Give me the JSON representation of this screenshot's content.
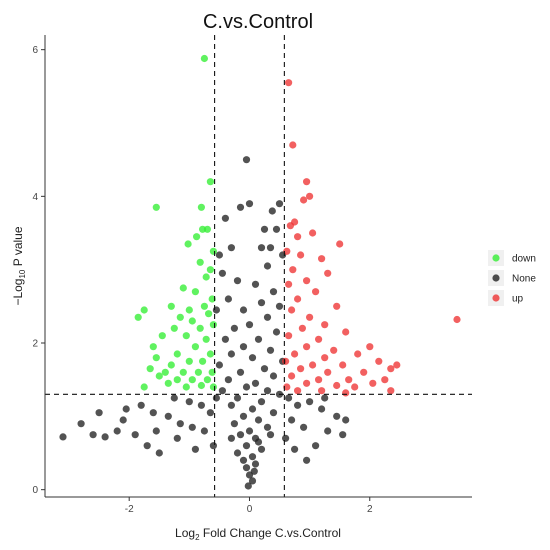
{
  "chart_data": {
    "type": "scatter",
    "title": "C.vs.Control",
    "xlabel": {
      "prefix": "Log",
      "sub": "2",
      "suffix": " Fold Change C.vs.Control"
    },
    "ylabel": {
      "prefix": "−Log",
      "sub": "10",
      "suffix": " P value"
    },
    "xlim": [
      -3.4,
      3.7
    ],
    "ylim": [
      -0.1,
      6.2
    ],
    "x_ticks": [
      -2,
      0,
      2
    ],
    "y_ticks": [
      0,
      2,
      4,
      6
    ],
    "grid": false,
    "legend_position": "right",
    "thresholds": {
      "log2fc": [
        -0.58,
        0.58
      ],
      "neg_log10_p": 1.3
    },
    "series": [
      {
        "name": "down",
        "color": "#33ee33",
        "points": [
          [
            -0.75,
            5.88
          ],
          [
            -0.65,
            4.2
          ],
          [
            -1.55,
            3.85
          ],
          [
            -0.8,
            3.85
          ],
          [
            -0.78,
            3.55
          ],
          [
            -0.7,
            3.55
          ],
          [
            -0.88,
            3.45
          ],
          [
            -1.02,
            3.35
          ],
          [
            -0.6,
            3.25
          ],
          [
            -0.82,
            3.1
          ],
          [
            -0.65,
            3.0
          ],
          [
            -0.72,
            2.9
          ],
          [
            -1.1,
            2.75
          ],
          [
            -0.9,
            2.7
          ],
          [
            -0.62,
            2.6
          ],
          [
            -1.3,
            2.5
          ],
          [
            -0.75,
            2.5
          ],
          [
            -1.75,
            2.45
          ],
          [
            -1.0,
            2.45
          ],
          [
            -1.15,
            2.35
          ],
          [
            -0.68,
            2.4
          ],
          [
            -0.95,
            2.3
          ],
          [
            -1.85,
            2.35
          ],
          [
            -0.82,
            2.2
          ],
          [
            -1.25,
            2.2
          ],
          [
            -0.6,
            2.25
          ],
          [
            -1.05,
            2.1
          ],
          [
            -1.45,
            2.1
          ],
          [
            -0.72,
            2.05
          ],
          [
            -1.6,
            1.95
          ],
          [
            -0.9,
            1.95
          ],
          [
            -1.2,
            1.85
          ],
          [
            -0.65,
            1.85
          ],
          [
            -1.55,
            1.8
          ],
          [
            -1.0,
            1.75
          ],
          [
            -0.78,
            1.75
          ],
          [
            -1.3,
            1.7
          ],
          [
            -1.65,
            1.65
          ],
          [
            -1.4,
            1.6
          ],
          [
            -1.1,
            1.6
          ],
          [
            -0.85,
            1.6
          ],
          [
            -0.62,
            1.6
          ],
          [
            -1.5,
            1.55
          ],
          [
            -1.2,
            1.5
          ],
          [
            -0.95,
            1.5
          ],
          [
            -0.7,
            1.5
          ],
          [
            -1.35,
            1.45
          ],
          [
            -0.8,
            1.42
          ],
          [
            -1.75,
            1.4
          ],
          [
            -1.05,
            1.4
          ],
          [
            -0.6,
            1.4
          ]
        ]
      },
      {
        "name": "None",
        "color": "#222222",
        "points": [
          [
            -0.05,
            4.5
          ],
          [
            0.0,
            3.9
          ],
          [
            -0.15,
            3.85
          ],
          [
            0.5,
            3.9
          ],
          [
            0.38,
            3.8
          ],
          [
            0.45,
            3.55
          ],
          [
            -0.4,
            3.7
          ],
          [
            0.25,
            3.55
          ],
          [
            0.2,
            3.3
          ],
          [
            -0.3,
            3.3
          ],
          [
            -0.5,
            3.2
          ],
          [
            0.35,
            3.3
          ],
          [
            0.55,
            3.2
          ],
          [
            0.3,
            3.05
          ],
          [
            -0.45,
            2.95
          ],
          [
            -0.2,
            2.85
          ],
          [
            0.1,
            2.8
          ],
          [
            0.4,
            2.7
          ],
          [
            -0.35,
            2.6
          ],
          [
            0.2,
            2.55
          ],
          [
            -0.1,
            2.45
          ],
          [
            0.5,
            2.5
          ],
          [
            -0.55,
            2.45
          ],
          [
            0.3,
            2.35
          ],
          [
            0.0,
            2.25
          ],
          [
            -0.25,
            2.2
          ],
          [
            0.45,
            2.15
          ],
          [
            -0.4,
            2.05
          ],
          [
            0.15,
            2.05
          ],
          [
            -0.1,
            1.95
          ],
          [
            0.35,
            1.9
          ],
          [
            -0.3,
            1.85
          ],
          [
            0.05,
            1.8
          ],
          [
            0.55,
            1.75
          ],
          [
            -0.5,
            1.7
          ],
          [
            0.25,
            1.65
          ],
          [
            -0.15,
            1.6
          ],
          [
            0.4,
            1.55
          ],
          [
            -0.35,
            1.5
          ],
          [
            0.1,
            1.45
          ],
          [
            -0.05,
            1.4
          ],
          [
            0.3,
            1.35
          ],
          [
            -0.45,
            1.35
          ],
          [
            0.5,
            1.3
          ],
          [
            -0.2,
            1.25
          ],
          [
            0.2,
            1.2
          ],
          [
            -0.3,
            1.15
          ],
          [
            0.05,
            1.1
          ],
          [
            0.4,
            1.05
          ],
          [
            -0.1,
            1.0
          ],
          [
            0.15,
            0.95
          ],
          [
            -0.25,
            0.9
          ],
          [
            0.3,
            0.85
          ],
          [
            0.0,
            0.8
          ],
          [
            -0.15,
            0.75
          ],
          [
            0.1,
            0.7
          ],
          [
            -0.05,
            0.6
          ],
          [
            0.2,
            0.55
          ],
          [
            -0.2,
            0.5
          ],
          [
            0.05,
            0.45
          ],
          [
            0.1,
            0.35
          ],
          [
            -0.05,
            0.3
          ],
          [
            0.0,
            0.2
          ],
          [
            0.05,
            0.12
          ],
          [
            -0.02,
            0.05
          ],
          [
            0.08,
            0.25
          ],
          [
            -0.1,
            0.4
          ],
          [
            0.15,
            0.65
          ],
          [
            -0.3,
            0.7
          ],
          [
            0.35,
            0.75
          ],
          [
            -3.1,
            0.72
          ],
          [
            -2.6,
            0.75
          ],
          [
            -2.4,
            0.72
          ],
          [
            -2.2,
            0.8
          ],
          [
            -2.1,
            0.95
          ],
          [
            -1.9,
            0.75
          ],
          [
            -1.7,
            0.6
          ],
          [
            -1.5,
            0.5
          ],
          [
            -2.05,
            1.1
          ],
          [
            -1.8,
            1.15
          ],
          [
            -1.6,
            1.05
          ],
          [
            -1.35,
            1.0
          ],
          [
            -1.15,
            0.9
          ],
          [
            -0.95,
            0.85
          ],
          [
            -0.75,
            0.8
          ],
          [
            -0.6,
            0.6
          ],
          [
            -1.0,
            1.2
          ],
          [
            -0.8,
            1.15
          ],
          [
            -1.25,
            1.25
          ],
          [
            -0.55,
            1.25
          ],
          [
            -0.65,
            1.05
          ],
          [
            -1.55,
            0.8
          ],
          [
            -1.2,
            0.7
          ],
          [
            -0.9,
            0.55
          ],
          [
            -2.8,
            0.9
          ],
          [
            -2.5,
            1.05
          ],
          [
            0.65,
            1.25
          ],
          [
            0.8,
            1.15
          ],
          [
            1.0,
            1.2
          ],
          [
            1.2,
            1.1
          ],
          [
            1.45,
            1.0
          ],
          [
            1.6,
            0.95
          ],
          [
            1.3,
            0.8
          ],
          [
            0.9,
            0.85
          ],
          [
            0.7,
            0.95
          ],
          [
            1.55,
            0.75
          ],
          [
            1.1,
            0.6
          ],
          [
            0.75,
            0.55
          ],
          [
            0.95,
            0.4
          ],
          [
            1.25,
            1.25
          ],
          [
            0.6,
            0.7
          ]
        ]
      },
      {
        "name": "up",
        "color": "#ee3333",
        "points": [
          [
            0.65,
            5.55
          ],
          [
            0.72,
            4.7
          ],
          [
            0.95,
            4.2
          ],
          [
            1.0,
            4.0
          ],
          [
            0.9,
            3.95
          ],
          [
            0.75,
            3.65
          ],
          [
            0.68,
            3.6
          ],
          [
            1.05,
            3.5
          ],
          [
            0.8,
            3.45
          ],
          [
            1.5,
            3.35
          ],
          [
            0.62,
            3.25
          ],
          [
            0.85,
            3.2
          ],
          [
            1.2,
            3.15
          ],
          [
            0.72,
            3.0
          ],
          [
            1.3,
            2.95
          ],
          [
            0.95,
            2.85
          ],
          [
            0.65,
            2.8
          ],
          [
            1.1,
            2.7
          ],
          [
            0.8,
            2.6
          ],
          [
            1.45,
            2.5
          ],
          [
            0.7,
            2.45
          ],
          [
            1.0,
            2.35
          ],
          [
            1.25,
            2.25
          ],
          [
            3.45,
            2.32
          ],
          [
            0.88,
            2.2
          ],
          [
            1.6,
            2.15
          ],
          [
            0.65,
            2.1
          ],
          [
            1.15,
            2.05
          ],
          [
            0.95,
            1.95
          ],
          [
            1.4,
            1.9
          ],
          [
            2.0,
            1.95
          ],
          [
            0.75,
            1.85
          ],
          [
            1.8,
            1.85
          ],
          [
            1.25,
            1.8
          ],
          [
            2.15,
            1.75
          ],
          [
            0.6,
            1.75
          ],
          [
            1.05,
            1.7
          ],
          [
            1.55,
            1.7
          ],
          [
            2.45,
            1.7
          ],
          [
            0.85,
            1.65
          ],
          [
            2.35,
            1.65
          ],
          [
            1.3,
            1.6
          ],
          [
            1.9,
            1.6
          ],
          [
            0.7,
            1.55
          ],
          [
            1.15,
            1.5
          ],
          [
            1.65,
            1.5
          ],
          [
            2.25,
            1.5
          ],
          [
            0.95,
            1.45
          ],
          [
            2.05,
            1.45
          ],
          [
            1.45,
            1.42
          ],
          [
            0.62,
            1.4
          ],
          [
            1.75,
            1.4
          ],
          [
            2.35,
            1.35
          ],
          [
            0.8,
            1.35
          ],
          [
            1.2,
            1.35
          ],
          [
            1.6,
            1.32
          ]
        ]
      }
    ]
  }
}
